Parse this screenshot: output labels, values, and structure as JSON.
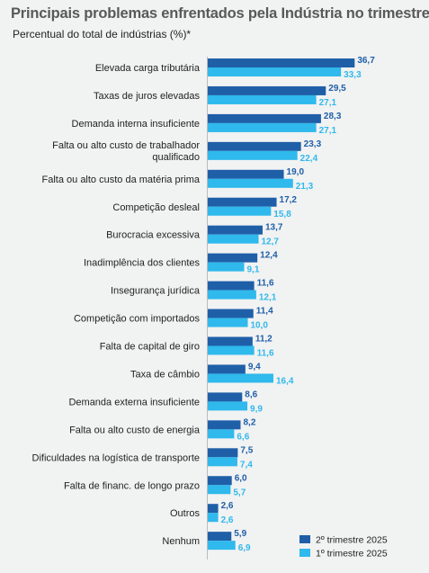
{
  "chart_data": {
    "type": "bar",
    "orientation": "horizontal",
    "title": "Principais problemas enfrentados pela Indústria no trimestre",
    "subtitle": "Percentual do total de indústrias (%)*",
    "categories": [
      [
        "Elevada carga tributária"
      ],
      [
        "Taxas de juros elevadas"
      ],
      [
        "Demanda interna insuficiente"
      ],
      [
        "Falta ou alto custo de trabalhador",
        "qualificado"
      ],
      [
        "Falta ou alto custo da matéria prima"
      ],
      [
        "Competição desleal"
      ],
      [
        "Burocracia excessiva"
      ],
      [
        "Inadimplência dos clientes"
      ],
      [
        "Insegurança jurídica"
      ],
      [
        "Competição com importados"
      ],
      [
        "Falta de capital de giro"
      ],
      [
        "Taxa de câmbio"
      ],
      [
        "Demanda externa insuficiente"
      ],
      [
        "Falta ou alto custo de energia"
      ],
      [
        "Dificuldades na logística de transporte"
      ],
      [
        "Falta de financ. de longo prazo"
      ],
      [
        "Outros"
      ],
      [
        "Nenhum"
      ]
    ],
    "series": [
      {
        "name": "2º trimestre 2025",
        "color": "#1f5fa8",
        "values": [
          36.7,
          29.5,
          28.3,
          23.3,
          19.0,
          17.2,
          13.7,
          12.4,
          11.6,
          11.4,
          11.2,
          9.4,
          8.6,
          8.2,
          7.5,
          6.0,
          2.6,
          5.9
        ],
        "labels": [
          "36,7",
          "29,5",
          "28,3",
          "23,3",
          "19,0",
          "17,2",
          "13,7",
          "12,4",
          "11,6",
          "11,4",
          "11,2",
          "9,4",
          "8,6",
          "8,2",
          "7,5",
          "6,0",
          "2,6",
          "5,9"
        ]
      },
      {
        "name": "1º trimestre 2025",
        "color": "#2fb9ec",
        "values": [
          33.3,
          27.1,
          27.1,
          22.4,
          21.3,
          15.8,
          12.7,
          9.1,
          12.1,
          10.0,
          11.6,
          16.4,
          9.9,
          6.6,
          7.4,
          5.7,
          2.6,
          6.9
        ],
        "labels": [
          "33,3",
          "27,1",
          "27,1",
          "22,4",
          "21,3",
          "15,8",
          "12,7",
          "9,1",
          "12,1",
          "10,0",
          "11,6",
          "16,4",
          "9,9",
          "6,6",
          "7,4",
          "5,7",
          "2,6",
          "6,9"
        ]
      }
    ],
    "legend_position": "bottom-right",
    "grid": false
  }
}
